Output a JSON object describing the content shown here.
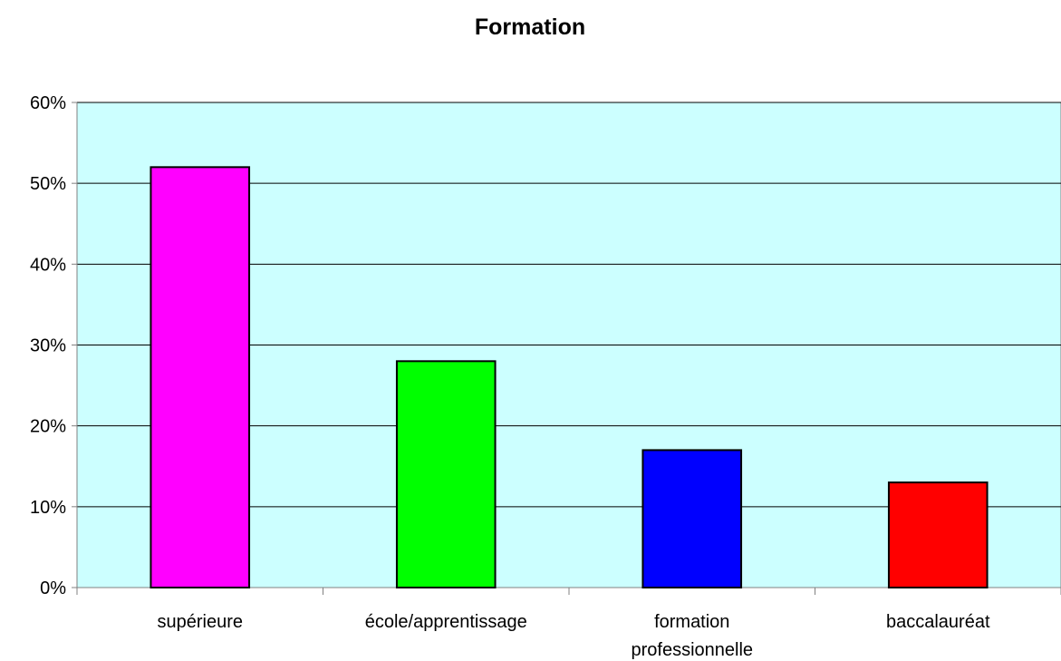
{
  "chart_data": {
    "type": "bar",
    "title": "Formation",
    "xlabel": "",
    "ylabel": "",
    "categories": [
      [
        "supérieure"
      ],
      [
        "école/apprentissage"
      ],
      [
        "formation",
        "professionnelle"
      ],
      [
        "baccalauréat"
      ]
    ],
    "values": [
      52,
      28,
      17,
      13
    ],
    "unit": "%",
    "ylim": [
      0,
      60
    ],
    "yticks": [
      0,
      10,
      20,
      30,
      40,
      50,
      60
    ],
    "ytick_labels": [
      "0%",
      "10%",
      "20%",
      "30%",
      "40%",
      "50%",
      "60%"
    ],
    "grid": true,
    "legend": "none",
    "colors": {
      "plot_background": "#CCFFFF",
      "bars": [
        "#FF00FF",
        "#00FF00",
        "#0000FF",
        "#FF0000"
      ],
      "bar_border": "#000000",
      "gridline": "#000000",
      "axis": "#808080"
    }
  }
}
